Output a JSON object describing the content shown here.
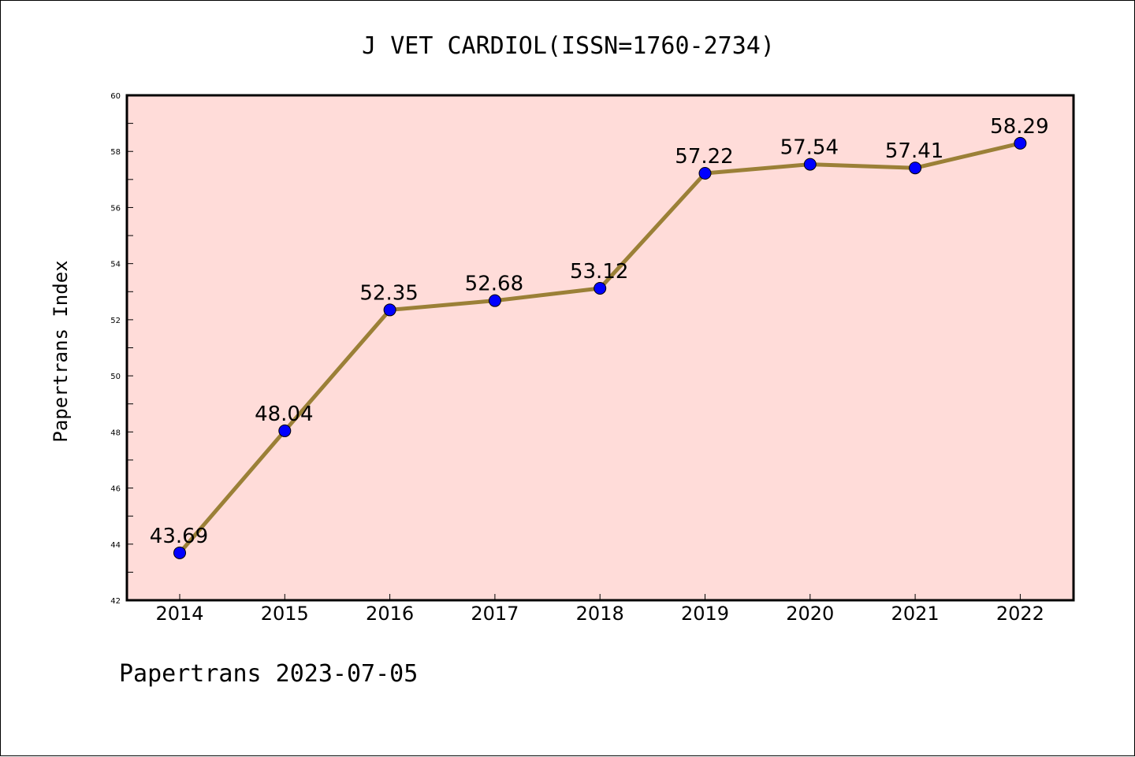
{
  "chart_data": {
    "type": "line",
    "title": "J VET CARDIOL(ISSN=1760-2734)",
    "ylabel": "Papertrans Index",
    "xlabel": "",
    "categories": [
      "2014",
      "2015",
      "2016",
      "2017",
      "2018",
      "2019",
      "2020",
      "2021",
      "2022"
    ],
    "series": [
      {
        "values": [
          43.69,
          48.04,
          52.35,
          52.68,
          53.12,
          57.22,
          57.54,
          57.41,
          58.29
        ],
        "labels": [
          "43.69",
          "48.04",
          "52.35",
          "52.68",
          "53.12",
          "57.22",
          "57.54",
          "57.41",
          "58.29"
        ]
      }
    ],
    "ylim": [
      42,
      60
    ],
    "yticks": [
      "42",
      "44",
      "46",
      "48",
      "50",
      "52",
      "54",
      "56",
      "58",
      "60"
    ],
    "grid": false,
    "legend": "none",
    "colors": {
      "line": "#9b8037",
      "marker": "#0000ff",
      "plot_background": "#ffdcd9"
    }
  },
  "footer": "Papertrans 2023-07-05"
}
